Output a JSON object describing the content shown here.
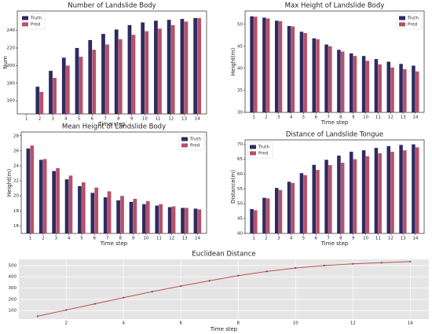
{
  "chart_data": [
    {
      "type": "bar",
      "title": "Number of Landslide Body",
      "x_label": "Time step",
      "y_label": "Num",
      "legend": "upper left",
      "categories": [
        1,
        2,
        3,
        4,
        5,
        6,
        7,
        8,
        9,
        10,
        11,
        12,
        13,
        14
      ],
      "series": [
        {
          "name": "Truth",
          "color": "#2f2a60",
          "values": [
            145,
            176,
            194,
            209,
            220,
            229,
            236,
            241,
            246,
            249,
            251,
            252,
            253,
            254
          ]
        },
        {
          "name": "Pred",
          "color": "#b5516a",
          "values": [
            145,
            170,
            186,
            200,
            210,
            218,
            224,
            230,
            235,
            239,
            242,
            246,
            250,
            254
          ]
        }
      ],
      "ylim": [
        145,
        262
      ],
      "yticks": [
        160,
        180,
        200,
        220,
        240
      ]
    },
    {
      "type": "bar",
      "title": "Max Height of Landslide Body",
      "x_label": "Time step",
      "y_label": "Height(m)",
      "legend": "upper right",
      "categories": [
        1,
        2,
        3,
        4,
        5,
        6,
        7,
        8,
        9,
        10,
        11,
        12,
        13,
        14
      ],
      "series": [
        {
          "name": "Truth",
          "color": "#2f2a60",
          "values": [
            51.8,
            51.5,
            50.8,
            49.6,
            48.3,
            46.8,
            45.4,
            44.2,
            43.4,
            42.8,
            42.1,
            41.5,
            41.0,
            40.6
          ]
        },
        {
          "name": "Pred",
          "color": "#b5516a",
          "values": [
            51.7,
            51.3,
            50.7,
            49.5,
            48.0,
            46.6,
            45.0,
            43.8,
            42.8,
            41.7,
            40.9,
            40.2,
            39.8,
            39.3
          ]
        }
      ],
      "ylim": [
        30,
        53
      ],
      "yticks": [
        30,
        35,
        40,
        45,
        50
      ]
    },
    {
      "type": "bar",
      "title": "Mean Height of Landslide Body",
      "x_label": "Time step",
      "y_label": "Height(m)",
      "legend": "upper right",
      "categories": [
        1,
        2,
        3,
        4,
        5,
        6,
        7,
        8,
        9,
        10,
        11,
        12,
        13,
        14
      ],
      "series": [
        {
          "name": "Truth",
          "color": "#2f2a60",
          "values": [
            26.3,
            24.8,
            23.3,
            22.2,
            21.3,
            20.4,
            19.8,
            19.4,
            19.2,
            18.9,
            18.7,
            18.5,
            18.4,
            18.3
          ]
        },
        {
          "name": "Pred",
          "color": "#b5516a",
          "values": [
            26.7,
            24.9,
            23.7,
            22.7,
            21.8,
            21.1,
            20.6,
            20.0,
            19.6,
            19.3,
            18.9,
            18.6,
            18.4,
            18.2
          ]
        }
      ],
      "ylim": [
        15,
        28.5
      ],
      "yticks": [
        16,
        18,
        20,
        22,
        24,
        26,
        28
      ]
    },
    {
      "type": "bar",
      "title": "Distance of Landslide Tongue",
      "x_label": "Time step",
      "y_label": "Distance(m)",
      "legend": "upper left",
      "categories": [
        1,
        2,
        3,
        4,
        5,
        6,
        7,
        8,
        9,
        10,
        11,
        12,
        13,
        14
      ],
      "series": [
        {
          "name": "Truth",
          "color": "#2f2a60",
          "values": [
            48.2,
            52.0,
            55.3,
            57.4,
            60.3,
            63.1,
            64.8,
            66.2,
            67.5,
            68.0,
            68.8,
            69.4,
            69.8,
            70.0
          ]
        },
        {
          "name": "Pred",
          "color": "#b5516a",
          "values": [
            47.8,
            51.8,
            54.6,
            57.0,
            59.6,
            61.4,
            63.0,
            63.8,
            65.0,
            66.0,
            67.0,
            67.5,
            68.0,
            69.0
          ]
        }
      ],
      "ylim": [
        40,
        71.5
      ],
      "yticks": [
        40,
        45,
        50,
        55,
        60,
        65,
        70
      ]
    },
    {
      "type": "line",
      "title": "Euclidean Distance",
      "x_label": "Time step",
      "grid": true,
      "color": "#c0504d",
      "x": [
        1,
        2,
        3,
        4,
        5,
        6,
        7,
        8,
        9,
        10,
        11,
        12,
        13,
        14
      ],
      "values": [
        50,
        105,
        160,
        215,
        268,
        318,
        365,
        410,
        448,
        478,
        500,
        515,
        525,
        535
      ],
      "xlim": [
        0.35,
        14.65
      ],
      "xticks": [
        2,
        4,
        6,
        8,
        10,
        12,
        14
      ],
      "ylim": [
        25,
        555
      ],
      "yticks": [
        100,
        200,
        300,
        400,
        500
      ]
    }
  ]
}
